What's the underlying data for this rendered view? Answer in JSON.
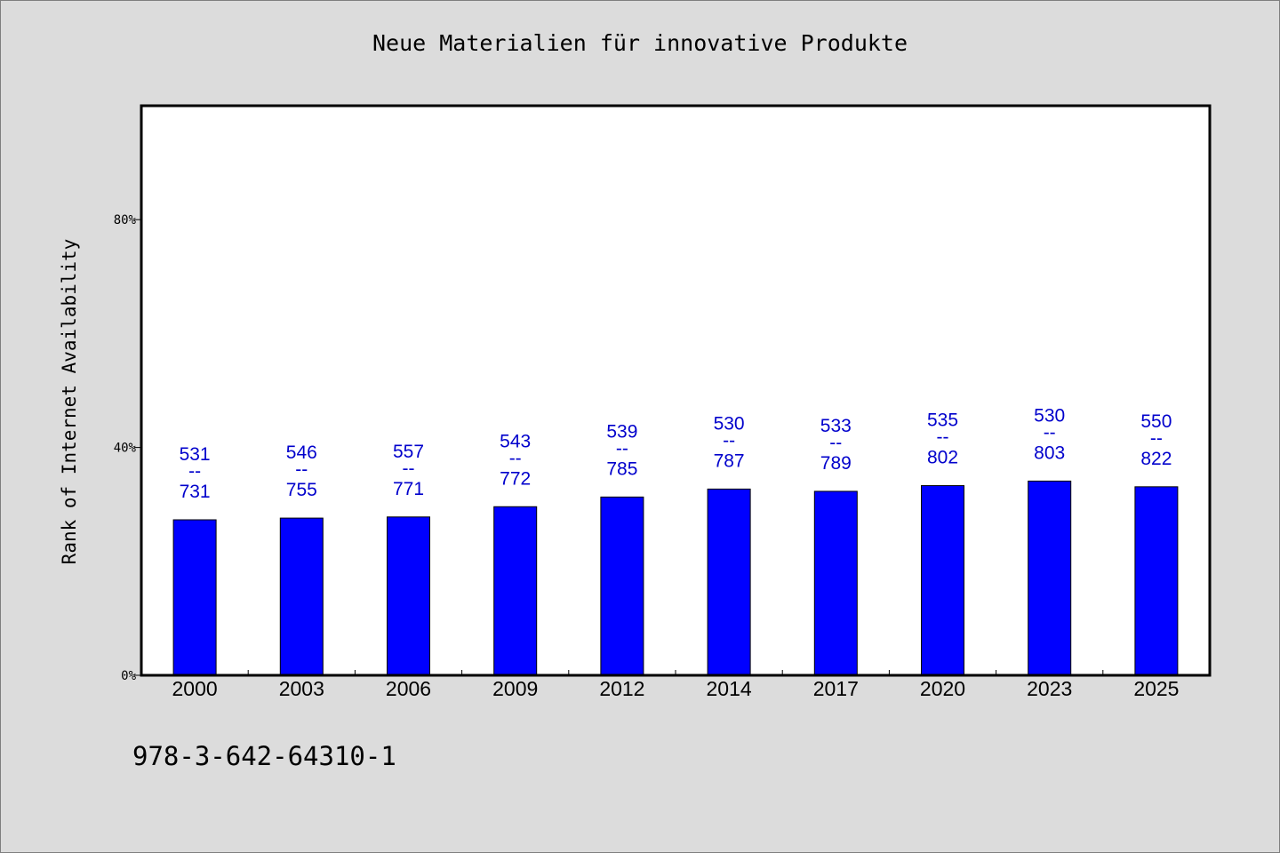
{
  "chart_data": {
    "type": "bar",
    "title": "Neue Materialien für innovative Produkte",
    "ylabel": "Rank of Internet Availability",
    "xlabel": "",
    "ylim": [
      0,
      100
    ],
    "yticks": [
      {
        "value": 0,
        "label": "0%"
      },
      {
        "value": 40,
        "label": "40%"
      },
      {
        "value": 80,
        "label": "80%"
      }
    ],
    "categories": [
      "2000",
      "2003",
      "2006",
      "2009",
      "2012",
      "2014",
      "2017",
      "2020",
      "2023",
      "2025"
    ],
    "values": [
      27.3,
      27.6,
      27.8,
      29.6,
      31.3,
      32.7,
      32.3,
      33.3,
      34.1,
      33.1
    ],
    "data_labels": [
      {
        "top": "531",
        "sep": "--",
        "bottom": "731"
      },
      {
        "top": "546",
        "sep": "--",
        "bottom": "755"
      },
      {
        "top": "557",
        "sep": "--",
        "bottom": "771"
      },
      {
        "top": "543",
        "sep": "--",
        "bottom": "772"
      },
      {
        "top": "539",
        "sep": "--",
        "bottom": "785"
      },
      {
        "top": "530",
        "sep": "--",
        "bottom": "787"
      },
      {
        "top": "533",
        "sep": "--",
        "bottom": "789"
      },
      {
        "top": "535",
        "sep": "--",
        "bottom": "802"
      },
      {
        "top": "530",
        "sep": "--",
        "bottom": "803"
      },
      {
        "top": "550",
        "sep": "--",
        "bottom": "822"
      }
    ],
    "bar_color": "#0000ff",
    "label_color": "#0000cc",
    "grid": false,
    "legend": "none"
  },
  "footer": {
    "code": "978-3-642-64310-1"
  }
}
